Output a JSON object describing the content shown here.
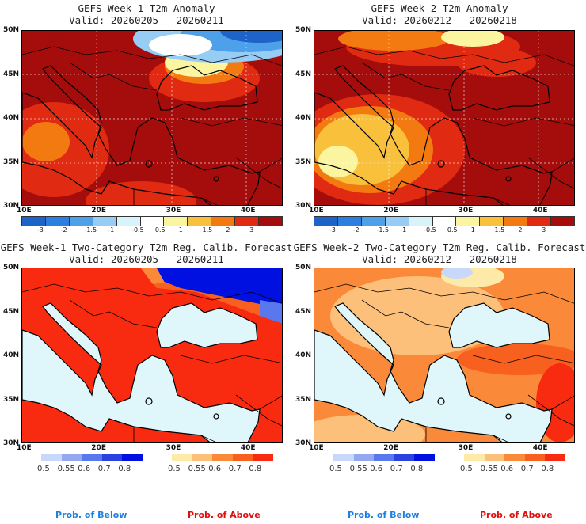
{
  "panels": [
    {
      "title": "GEFS Week-1 T2m Anomaly",
      "valid": "Valid: 20260205 - 20260211"
    },
    {
      "title": "GEFS Week-2 T2m Anomaly",
      "valid": "Valid: 20260212 - 20260218"
    },
    {
      "title": "GEFS Week-1 Two-Category T2m Reg. Calib. Forecast",
      "valid": "Valid: 20260205 - 20260211"
    },
    {
      "title": "GEFS Week-2 Two-Category T2m Reg. Calib. Forecast",
      "valid": "Valid: 20260212 - 20260218"
    }
  ],
  "lat_labels": [
    "50N",
    "45N",
    "40N",
    "35N",
    "30N"
  ],
  "lon_labels": [
    "10E",
    "20E",
    "30E",
    "40E"
  ],
  "anomaly_colorbar": {
    "labels": [
      "-3",
      "-2",
      "-1.5",
      "-1",
      "-0.5",
      "0.5",
      "1",
      "1.5",
      "2",
      "3"
    ],
    "colors": [
      "#1d63c8",
      "#2b7fe0",
      "#4fa0ea",
      "#97ccf5",
      "#d9f3fb",
      "#ffffff",
      "#fbf5a0",
      "#f9c03c",
      "#f27a10",
      "#e02a12",
      "#a50d0d"
    ]
  },
  "prob_colorbar": {
    "labels": [
      "0.5",
      "0.55",
      "0.6",
      "0.7",
      "0.8"
    ],
    "below_colors": [
      "#c8d8fa",
      "#93a8f0",
      "#5a78ee",
      "#2a42e0",
      "#0010e0"
    ],
    "above_colors": [
      "#fde9a8",
      "#fdc07a",
      "#fa8a3a",
      "#f86020",
      "#f82a10"
    ]
  },
  "footer": {
    "below": "Prob. of Below",
    "above": "Prob. of Above",
    "below_color": "#1e7fe0",
    "above_color": "#e01010"
  }
}
